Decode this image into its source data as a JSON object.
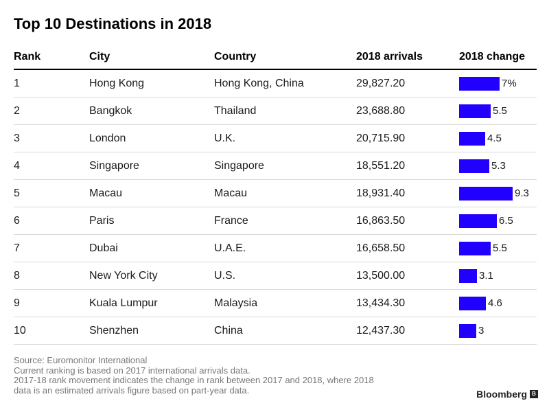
{
  "chart_data": {
    "type": "table",
    "title": "Top 10 Destinations in 2018",
    "columns": [
      "Rank",
      "City",
      "Country",
      "2018 arrivals",
      "2018 change"
    ],
    "rows": [
      {
        "rank": "1",
        "city": "Hong Kong",
        "country": "Hong Kong, China",
        "arrivals": "29,827.20",
        "change": 7,
        "change_label": "7%"
      },
      {
        "rank": "2",
        "city": "Bangkok",
        "country": "Thailand",
        "arrivals": "23,688.80",
        "change": 5.5,
        "change_label": "5.5"
      },
      {
        "rank": "3",
        "city": "London",
        "country": "U.K.",
        "arrivals": "20,715.90",
        "change": 4.5,
        "change_label": "4.5"
      },
      {
        "rank": "4",
        "city": "Singapore",
        "country": "Singapore",
        "arrivals": "18,551.20",
        "change": 5.3,
        "change_label": "5.3"
      },
      {
        "rank": "5",
        "city": "Macau",
        "country": "Macau",
        "arrivals": "18,931.40",
        "change": 9.3,
        "change_label": "9.3"
      },
      {
        "rank": "6",
        "city": "Paris",
        "country": "France",
        "arrivals": "16,863.50",
        "change": 6.5,
        "change_label": "6.5"
      },
      {
        "rank": "7",
        "city": "Dubai",
        "country": "U.A.E.",
        "arrivals": "16,658.50",
        "change": 5.5,
        "change_label": "5.5"
      },
      {
        "rank": "8",
        "city": "New York City",
        "country": "U.S.",
        "arrivals": "13,500.00",
        "change": 3.1,
        "change_label": "3.1"
      },
      {
        "rank": "9",
        "city": "Kuala Lumpur",
        "country": "Malaysia",
        "arrivals": "13,434.30",
        "change": 4.6,
        "change_label": "4.6"
      },
      {
        "rank": "10",
        "city": "Shenzhen",
        "country": "China",
        "arrivals": "12,437.30",
        "change": 3,
        "change_label": "3"
      }
    ],
    "change_max": 9.3,
    "bar_color": "#2200ff"
  },
  "footer": {
    "lines": [
      "Source: Euromonitor International",
      "Current ranking is based on 2017 international arrivals data.",
      "2017-18 rank movement indicates the change in rank between 2017 and 2018, where 2018",
      "data is an estimated arrivals figure based on part-year data."
    ]
  },
  "brand": {
    "name": "Bloomberg",
    "icon": "bloomberg-logo-icon"
  }
}
